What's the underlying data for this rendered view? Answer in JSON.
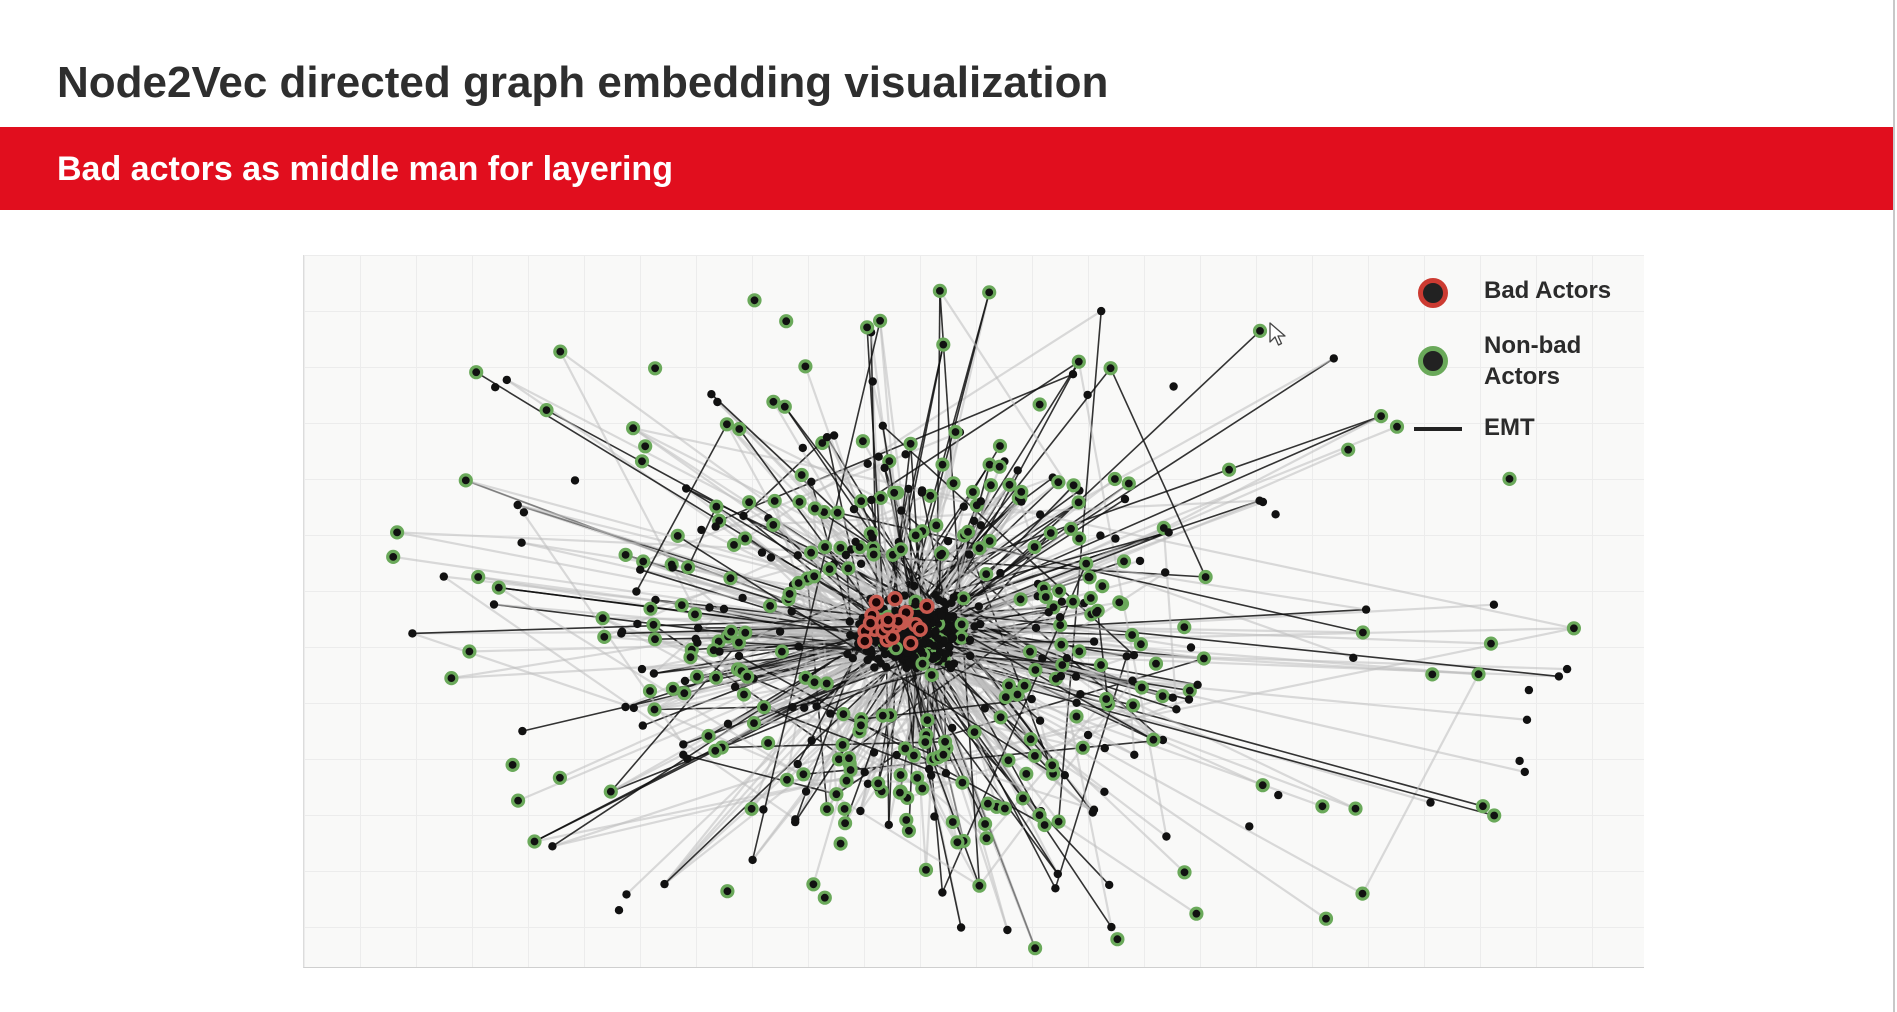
{
  "slide": {
    "title": "Node2Vec directed graph embedding visualization",
    "subtitle": "Bad actors as middle man for layering"
  },
  "colors": {
    "banner": "#e10e1e",
    "bad_actor_ring": "#c8594f",
    "non_bad_actor_ring": "#6aa95a",
    "node_fill": "#111111",
    "edge_dark": "#111111",
    "edge_light": "#bdbdbd"
  },
  "legend": {
    "items": [
      {
        "label": "Bad Actors",
        "kind": "node",
        "ring": "#cc3b32"
      },
      {
        "label": "Non-bad\nActors",
        "kind": "node",
        "ring": "#6aa95a"
      },
      {
        "label": "EMT",
        "kind": "line",
        "ring": "#222222"
      }
    ]
  },
  "icons": {
    "cursor": "mouse-pointer-icon"
  }
}
